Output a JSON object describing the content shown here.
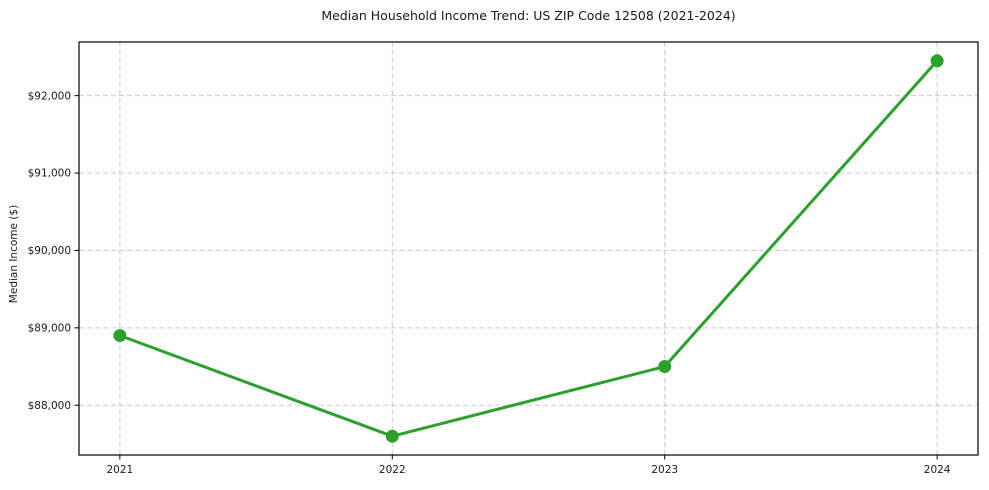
{
  "chart_data": {
    "type": "line",
    "title": "Median Household Income Trend: US ZIP Code 12508 (2021-2024)",
    "xlabel": "",
    "ylabel": "Median Income ($)",
    "categories": [
      "2021",
      "2022",
      "2023",
      "2024"
    ],
    "x": [
      2021,
      2022,
      2023,
      2024
    ],
    "series": [
      {
        "name": "Median Household Income",
        "values": [
          88900,
          87600,
          88500,
          92450
        ]
      }
    ],
    "xlim": [
      2020.85,
      2024.15
    ],
    "ylim": [
      87357,
      92693
    ],
    "yticks": [
      88000,
      89000,
      90000,
      91000,
      92000
    ],
    "y_tick_labels": [
      "$88,000",
      "$89,000",
      "$90,000",
      "$91,000",
      "$92,000"
    ],
    "grid": true,
    "grid_style": "dashed",
    "legend": "none",
    "colors": {
      "line": "#2ca02c",
      "marker": "#2ca02c",
      "grid": "#c9c9c9",
      "spine": "#000000",
      "text": "#1a1a1a",
      "background": "#ffffff"
    }
  }
}
